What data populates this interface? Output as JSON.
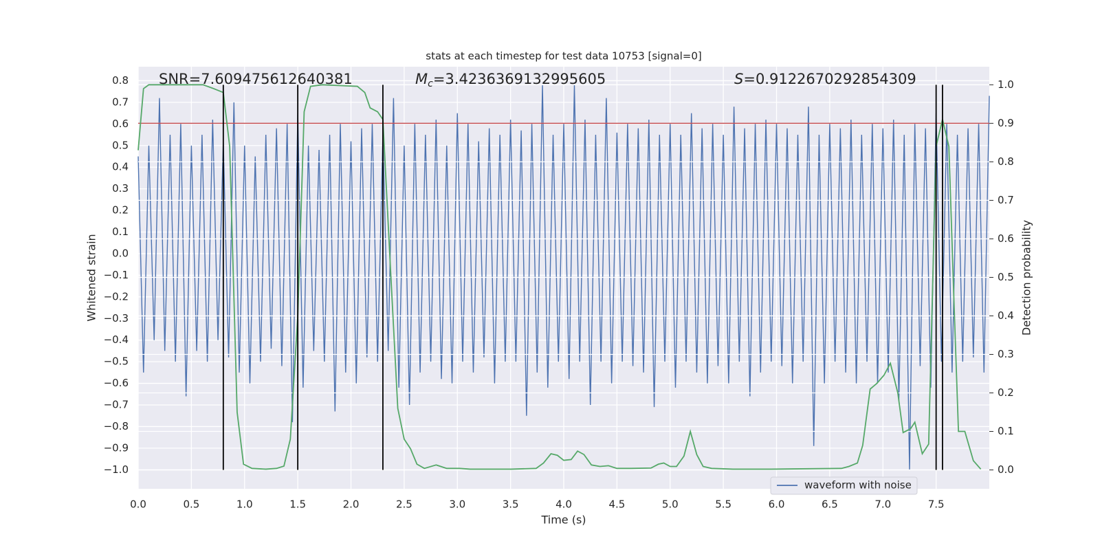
{
  "chart_data": {
    "type": "line",
    "title": "stats at each timestep for test data 10753 [signal=0]",
    "xlabel": "Time (s)",
    "ylabel": "Whitened strain",
    "y2label": "Detection probability",
    "xlim": [
      0,
      8.0
    ],
    "ylim": [
      -1.088,
      0.865
    ],
    "y2lim": [
      -0.049,
      1.047
    ],
    "grid": true,
    "xticks": [
      {
        "value": 0,
        "label": "0.0"
      },
      {
        "value": 0.5,
        "label": "0.5"
      },
      {
        "value": 1,
        "label": "1.0"
      },
      {
        "value": 1.5,
        "label": "1.5"
      },
      {
        "value": 2,
        "label": "2.0"
      },
      {
        "value": 2.5,
        "label": "2.5"
      },
      {
        "value": 3,
        "label": "3.0"
      },
      {
        "value": 3.5,
        "label": "3.5"
      },
      {
        "value": 4,
        "label": "4.0"
      },
      {
        "value": 4.5,
        "label": "4.5"
      },
      {
        "value": 5,
        "label": "5.0"
      },
      {
        "value": 5.5,
        "label": "5.5"
      },
      {
        "value": 6,
        "label": "6.0"
      },
      {
        "value": 6.5,
        "label": "6.5"
      },
      {
        "value": 7,
        "label": "7.0"
      },
      {
        "value": 7.5,
        "label": "7.5"
      }
    ],
    "yticks": [
      {
        "value": -1.0,
        "label": "−1.0"
      },
      {
        "value": -0.9,
        "label": "−0.9"
      },
      {
        "value": -0.8,
        "label": "−0.8"
      },
      {
        "value": -0.7,
        "label": "−0.7"
      },
      {
        "value": -0.6,
        "label": "−0.6"
      },
      {
        "value": -0.5,
        "label": "−0.5"
      },
      {
        "value": -0.4,
        "label": "−0.4"
      },
      {
        "value": -0.3,
        "label": "−0.3"
      },
      {
        "value": -0.2,
        "label": "−0.2"
      },
      {
        "value": -0.1,
        "label": "−0.1"
      },
      {
        "value": 0,
        "label": "0.0"
      },
      {
        "value": 0.1,
        "label": "0.1"
      },
      {
        "value": 0.2,
        "label": "0.2"
      },
      {
        "value": 0.3,
        "label": "0.3"
      },
      {
        "value": 0.4,
        "label": "0.4"
      },
      {
        "value": 0.5,
        "label": "0.5"
      },
      {
        "value": 0.6,
        "label": "0.6"
      },
      {
        "value": 0.7,
        "label": "0.7"
      },
      {
        "value": 0.8,
        "label": "0.8"
      }
    ],
    "y2ticks": [
      {
        "value": 0,
        "label": "0.0"
      },
      {
        "value": 0.1,
        "label": "0.1"
      },
      {
        "value": 0.2,
        "label": "0.2"
      },
      {
        "value": 0.3,
        "label": "0.3"
      },
      {
        "value": 0.4,
        "label": "0.4"
      },
      {
        "value": 0.5,
        "label": "0.5"
      },
      {
        "value": 0.6,
        "label": "0.6"
      },
      {
        "value": 0.7,
        "label": "0.7"
      },
      {
        "value": 0.8,
        "label": "0.8"
      },
      {
        "value": 0.9,
        "label": "0.9"
      },
      {
        "value": 1,
        "label": "1.0"
      }
    ],
    "annotations": [
      {
        "text": "SNR=7.609475612640381"
      },
      {
        "symbol": "M",
        "subscript": "c",
        "text": "=3.4236369132995605"
      },
      {
        "symbol": "S",
        "text": "=0.9122670292854309"
      }
    ],
    "series": [
      {
        "name": "waveform with noise",
        "color": "#4c72b0",
        "x": [
          0,
          0.05,
          0.1,
          0.15,
          0.2,
          0.25,
          0.3,
          0.35,
          0.4,
          0.45,
          0.5,
          0.55,
          0.6,
          0.65,
          0.7,
          0.75,
          0.8,
          0.85,
          0.9,
          0.95,
          1,
          1.05,
          1.1,
          1.15,
          1.2,
          1.25,
          1.3,
          1.35,
          1.4,
          1.45,
          1.5,
          1.55,
          1.6,
          1.65,
          1.7,
          1.75,
          1.8,
          1.85,
          1.9,
          1.95,
          2,
          2.05,
          2.1,
          2.15,
          2.2,
          2.25,
          2.3,
          2.35,
          2.4,
          2.45,
          2.5,
          2.55,
          2.6,
          2.65,
          2.7,
          2.75,
          2.8,
          2.85,
          2.9,
          2.95,
          3,
          3.05,
          3.1,
          3.15,
          3.2,
          3.25,
          3.3,
          3.35,
          3.4,
          3.45,
          3.5,
          3.55,
          3.6,
          3.65,
          3.7,
          3.75,
          3.8,
          3.85,
          3.9,
          3.95,
          4,
          4.05,
          4.1,
          4.15,
          4.2,
          4.25,
          4.3,
          4.35,
          4.4,
          4.45,
          4.5,
          4.55,
          4.6,
          4.65,
          4.7,
          4.75,
          4.8,
          4.85,
          4.9,
          4.95,
          5,
          5.05,
          5.1,
          5.15,
          5.2,
          5.25,
          5.3,
          5.35,
          5.4,
          5.45,
          5.5,
          5.55,
          5.6,
          5.65,
          5.7,
          5.75,
          5.8,
          5.85,
          5.9,
          5.95,
          6,
          6.05,
          6.1,
          6.15,
          6.2,
          6.25,
          6.3,
          6.35,
          6.4,
          6.45,
          6.5,
          6.55,
          6.6,
          6.65,
          6.7,
          6.75,
          6.8,
          6.85,
          6.9,
          6.95,
          7,
          7.05,
          7.1,
          7.15,
          7.2,
          7.25,
          7.3,
          7.35,
          7.4,
          7.45,
          7.5,
          7.55,
          7.6,
          7.65,
          7.7,
          7.75,
          7.8,
          7.85,
          7.9,
          7.95,
          8
        ],
        "values": [
          0.45,
          -0.55,
          0.5,
          -0.4,
          0.72,
          -0.45,
          0.55,
          -0.5,
          0.6,
          -0.66,
          0.5,
          -0.45,
          0.55,
          -0.5,
          0.62,
          -0.4,
          0.52,
          -0.48,
          0.7,
          -0.55,
          0.5,
          -0.6,
          0.45,
          -0.5,
          0.55,
          -0.44,
          0.58,
          -0.52,
          0.6,
          -0.78,
          0.65,
          -0.62,
          0.5,
          -0.45,
          0.48,
          -0.5,
          0.55,
          -0.73,
          0.6,
          -0.55,
          0.52,
          -0.6,
          0.58,
          -0.48,
          0.6,
          -0.5,
          0.55,
          -0.45,
          0.72,
          -0.62,
          0.5,
          -0.7,
          0.6,
          -0.55,
          0.55,
          -0.5,
          0.62,
          -0.58,
          0.5,
          -0.6,
          0.65,
          -0.5,
          0.6,
          -0.55,
          0.52,
          -0.48,
          0.58,
          -0.6,
          0.55,
          -0.5,
          0.62,
          -0.5,
          0.57,
          -0.75,
          0.6,
          -0.55,
          0.78,
          -0.62,
          0.55,
          -0.5,
          0.6,
          -0.58,
          0.78,
          -0.5,
          0.62,
          -0.7,
          0.55,
          -0.5,
          0.72,
          -0.6,
          0.56,
          -0.5,
          0.6,
          -0.52,
          0.58,
          -0.55,
          0.62,
          -0.71,
          0.55,
          -0.5,
          0.6,
          -0.62,
          0.55,
          -0.5,
          0.65,
          -0.55,
          0.58,
          -0.6,
          0.6,
          -0.52,
          0.55,
          -0.6,
          0.68,
          -0.5,
          0.58,
          -0.66,
          0.6,
          -0.55,
          0.62,
          -0.5,
          0.6,
          -0.52,
          0.58,
          -0.6,
          0.55,
          -0.5,
          0.68,
          -0.89,
          0.55,
          -0.6,
          0.6,
          -0.5,
          0.58,
          -0.55,
          0.62,
          -0.6,
          0.55,
          -0.5,
          0.6,
          -0.6,
          0.58,
          -0.55,
          0.62,
          -0.68,
          0.55,
          -1.0,
          0.6,
          -0.52,
          0.58,
          -0.62,
          0.65,
          -0.5,
          0.6,
          -0.55,
          0.55,
          -0.5,
          0.58,
          -0.48,
          0.6,
          -0.55,
          0.73
        ]
      },
      {
        "color": "#55a868",
        "axis": "y2",
        "x": [
          0,
          0.05,
          0.1,
          0.61,
          0.71,
          0.8,
          0.86,
          0.93,
          0.99,
          1.07,
          1.2,
          1.3,
          1.37,
          1.43,
          1.5,
          1.56,
          1.62,
          1.73,
          2.06,
          2.13,
          2.18,
          2.25,
          2.3,
          2.37,
          2.44,
          2.5,
          2.56,
          2.62,
          2.69,
          2.8,
          2.9,
          3.02,
          3.12,
          3.51,
          3.74,
          3.81,
          3.88,
          3.94,
          4.0,
          4.07,
          4.13,
          4.19,
          4.26,
          4.34,
          4.42,
          4.5,
          4.63,
          4.82,
          4.89,
          4.94,
          5.0,
          5.06,
          5.13,
          5.19,
          5.25,
          5.31,
          5.39,
          5.59,
          5.95,
          6.61,
          6.68,
          6.76,
          6.81,
          6.88,
          6.94,
          7.01,
          7.07,
          7.14,
          7.19,
          7.26,
          7.3,
          7.37,
          7.43,
          7.5,
          7.56,
          7.62,
          7.67,
          7.71,
          7.77,
          7.85,
          7.92
        ],
        "values": [
          0.83,
          0.99,
          1.0,
          1.0,
          0.99,
          0.98,
          0.84,
          0.15,
          0.015,
          0.004,
          0.002,
          0.004,
          0.01,
          0.08,
          0.4,
          0.93,
          0.996,
          1.0,
          0.996,
          0.98,
          0.94,
          0.93,
          0.91,
          0.53,
          0.16,
          0.08,
          0.055,
          0.015,
          0.004,
          0.013,
          0.004,
          0.004,
          0.002,
          0.002,
          0.004,
          0.018,
          0.042,
          0.038,
          0.025,
          0.027,
          0.049,
          0.04,
          0.013,
          0.009,
          0.011,
          0.004,
          0.004,
          0.005,
          0.015,
          0.018,
          0.009,
          0.009,
          0.036,
          0.1,
          0.04,
          0.009,
          0.004,
          0.002,
          0.002,
          0.004,
          0.009,
          0.018,
          0.064,
          0.21,
          0.224,
          0.246,
          0.277,
          0.2,
          0.097,
          0.107,
          0.124,
          0.042,
          0.067,
          0.84,
          0.91,
          0.84,
          0.42,
          0.1,
          0.1,
          0.024,
          0.002
        ]
      }
    ],
    "threshold": {
      "value": 0.9,
      "axis": "y2",
      "color": "#c44e52"
    },
    "vlines": {
      "x": [
        0.8,
        1.5,
        2.3,
        7.5,
        7.56
      ],
      "y2_range": [
        0,
        1
      ],
      "color": "#000000"
    }
  }
}
